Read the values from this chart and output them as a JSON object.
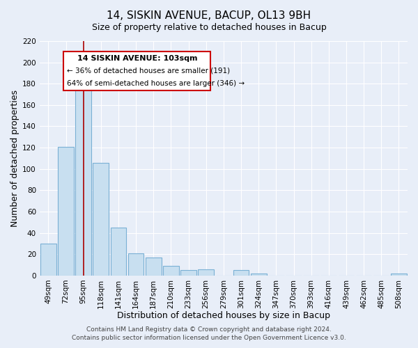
{
  "title": "14, SISKIN AVENUE, BACUP, OL13 9BH",
  "subtitle": "Size of property relative to detached houses in Bacup",
  "xlabel": "Distribution of detached houses by size in Bacup",
  "ylabel": "Number of detached properties",
  "bar_labels": [
    "49sqm",
    "72sqm",
    "95sqm",
    "118sqm",
    "141sqm",
    "164sqm",
    "187sqm",
    "210sqm",
    "233sqm",
    "256sqm",
    "279sqm",
    "301sqm",
    "324sqm",
    "347sqm",
    "370sqm",
    "393sqm",
    "416sqm",
    "439sqm",
    "462sqm",
    "485sqm",
    "508sqm"
  ],
  "bar_values": [
    30,
    121,
    175,
    106,
    45,
    21,
    17,
    9,
    5,
    6,
    0,
    5,
    2,
    0,
    0,
    0,
    0,
    0,
    0,
    0,
    2
  ],
  "bar_color": "#c8dff0",
  "bar_edge_color": "#7ab0d4",
  "vline_x_index": 2,
  "vline_color": "#aa0000",
  "ylim": [
    0,
    220
  ],
  "yticks": [
    0,
    20,
    40,
    60,
    80,
    100,
    120,
    140,
    160,
    180,
    200,
    220
  ],
  "annotation_title": "14 SISKIN AVENUE: 103sqm",
  "annotation_line1": "← 36% of detached houses are smaller (191)",
  "annotation_line2": "64% of semi-detached houses are larger (346) →",
  "footer1": "Contains HM Land Registry data © Crown copyright and database right 2024.",
  "footer2": "Contains public sector information licensed under the Open Government Licence v3.0.",
  "background_color": "#e8eef8",
  "grid_color": "#ffffff",
  "title_fontsize": 11,
  "axis_label_fontsize": 9,
  "tick_fontsize": 7.5,
  "footer_fontsize": 6.5
}
